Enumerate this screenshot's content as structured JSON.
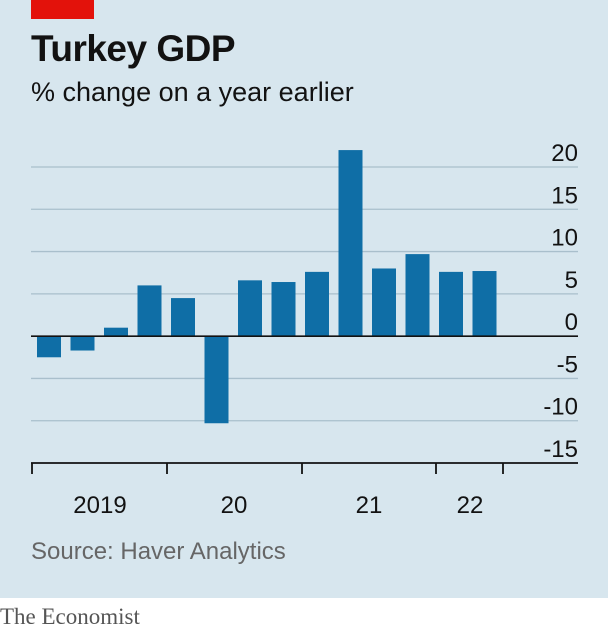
{
  "header": {
    "title": "Turkey GDP",
    "subtitle": "% change on a year earlier"
  },
  "footer": {
    "source": "Source: Haver Analytics",
    "brand": "The Economist"
  },
  "colors": {
    "bar": "#0f6ea6",
    "background": "#d7e6ee",
    "accent": "#e3120b"
  },
  "chart_data": {
    "type": "bar",
    "title": "Turkey GDP",
    "subtitle": "% change on a year earlier",
    "xlabel": "",
    "ylabel": "",
    "ylim": [
      -15,
      20
    ],
    "yticks": [
      20,
      15,
      10,
      5,
      0,
      -5,
      -10,
      -15
    ],
    "ytick_labels": [
      "20",
      "15",
      "10",
      "5",
      "0",
      "-5",
      "-10",
      "-15"
    ],
    "grid": true,
    "categories": [
      "2019 Q1",
      "2019 Q2",
      "2019 Q3",
      "2019 Q4",
      "2020 Q1",
      "2020 Q2",
      "2020 Q3",
      "2020 Q4",
      "2021 Q1",
      "2021 Q2",
      "2021 Q3",
      "2021 Q4",
      "2022 Q1",
      "2022 Q2"
    ],
    "values": [
      -2.5,
      -1.7,
      1.0,
      6.0,
      4.5,
      -10.3,
      6.6,
      6.4,
      7.6,
      22.0,
      8.0,
      9.7,
      7.6,
      7.7
    ],
    "xtick_labels": [
      "2019",
      "20",
      "21",
      "22"
    ]
  }
}
